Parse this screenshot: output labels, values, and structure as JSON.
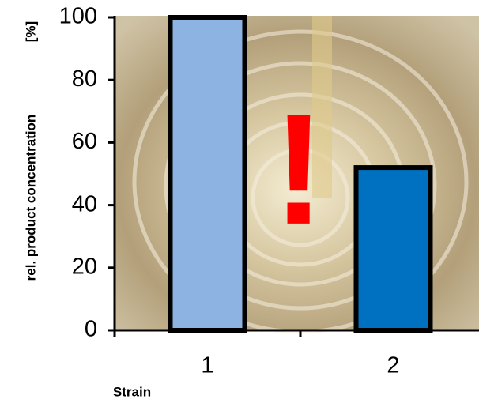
{
  "chart_data": {
    "type": "bar",
    "categories": [
      "1",
      "2"
    ],
    "series": [
      {
        "values": [
          100,
          52
        ],
        "colors": [
          "#8db3e2",
          "#0070c0"
        ]
      }
    ],
    "ylim": [
      0,
      100
    ],
    "yticks": [
      0,
      20,
      40,
      60,
      80,
      100
    ],
    "x_label": "Strain",
    "y_label": "rel. product concentration",
    "y_unit": "[%]",
    "annotation": "!"
  }
}
